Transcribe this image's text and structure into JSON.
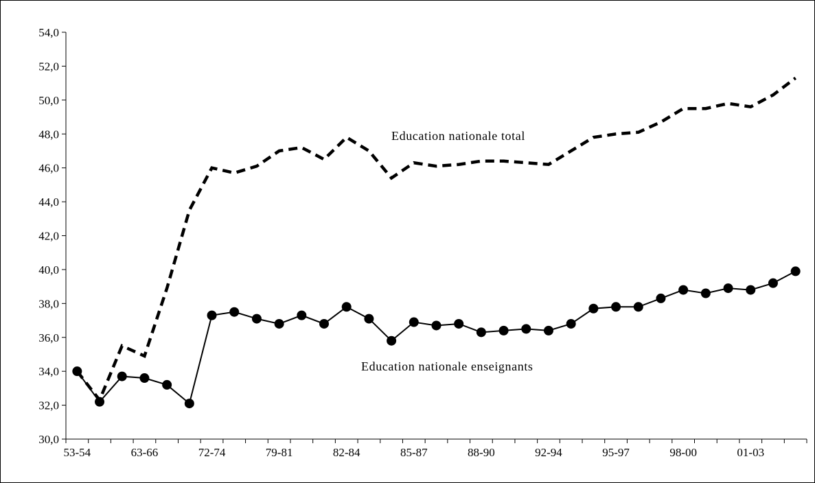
{
  "chart_data": {
    "type": "line",
    "title": "",
    "xlabel": "",
    "ylabel": "",
    "ylim": [
      30,
      54
    ],
    "y_ticks": [
      "30,0",
      "32,0",
      "34,0",
      "36,0",
      "38,0",
      "40,0",
      "42,0",
      "44,0",
      "46,0",
      "48,0",
      "50,0",
      "52,0",
      "54,0"
    ],
    "x_tick_labels": [
      "53-54",
      "63-66",
      "72-74",
      "79-81",
      "82-84",
      "85-87",
      "88-90",
      "92-94",
      "95-97",
      "98-00",
      "01-03"
    ],
    "grid": false,
    "legend": "none",
    "annotations": [
      "Education nationale total",
      "Education nationale enseignants"
    ],
    "series": [
      {
        "name": "Education nationale total",
        "style": "dashed",
        "color": "#000000",
        "values": [
          34.0,
          32.3,
          35.5,
          34.9,
          38.9,
          43.5,
          46.0,
          45.7,
          46.1,
          47.0,
          47.2,
          46.5,
          47.8,
          47.0,
          45.4,
          46.3,
          46.1,
          46.2,
          46.4,
          46.4,
          46.3,
          46.2,
          47.0,
          47.8,
          48.0,
          48.1,
          48.7,
          49.5,
          49.5,
          49.8,
          49.6,
          50.3,
          51.3
        ]
      },
      {
        "name": "Education nationale enseignants",
        "style": "solid-markers",
        "color": "#000000",
        "values": [
          34.0,
          32.2,
          33.7,
          33.6,
          33.2,
          32.1,
          37.3,
          37.5,
          37.1,
          36.8,
          37.3,
          36.8,
          37.8,
          37.1,
          35.8,
          36.9,
          36.7,
          36.8,
          36.3,
          36.4,
          36.5,
          36.4,
          36.8,
          37.7,
          37.8,
          37.8,
          38.3,
          38.8,
          38.6,
          38.9,
          38.8,
          39.2,
          39.9
        ]
      }
    ]
  }
}
